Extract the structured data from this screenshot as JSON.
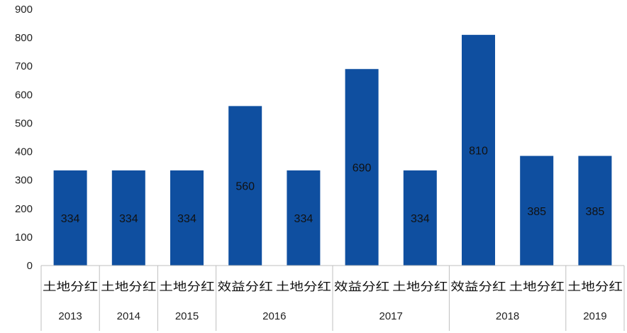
{
  "chart_data": {
    "type": "bar",
    "categories": [
      "土地分红",
      "土地分红",
      "土地分红",
      "效益分红",
      "土地分红",
      "效益分红",
      "土地分红",
      "效益分红",
      "土地分红",
      "土地分红"
    ],
    "groups": [
      {
        "label": "2013",
        "count": 1
      },
      {
        "label": "2014",
        "count": 1
      },
      {
        "label": "2015",
        "count": 1
      },
      {
        "label": "2016",
        "count": 2
      },
      {
        "label": "2017",
        "count": 2
      },
      {
        "label": "2018",
        "count": 2
      },
      {
        "label": "2019",
        "count": 1
      }
    ],
    "values": [
      334,
      334,
      334,
      560,
      334,
      690,
      334,
      810,
      385,
      385
    ],
    "data_labels": [
      "334",
      "334",
      "334",
      "560",
      "334",
      "690",
      "334",
      "810",
      "385",
      "385"
    ],
    "title": "",
    "xlabel": "",
    "ylabel": "",
    "ylim": [
      0,
      900
    ],
    "yticks": [
      0,
      100,
      200,
      300,
      400,
      500,
      600,
      700,
      800,
      900
    ],
    "grid": false,
    "legend": "none",
    "bar_color": "#0f4fa0"
  }
}
